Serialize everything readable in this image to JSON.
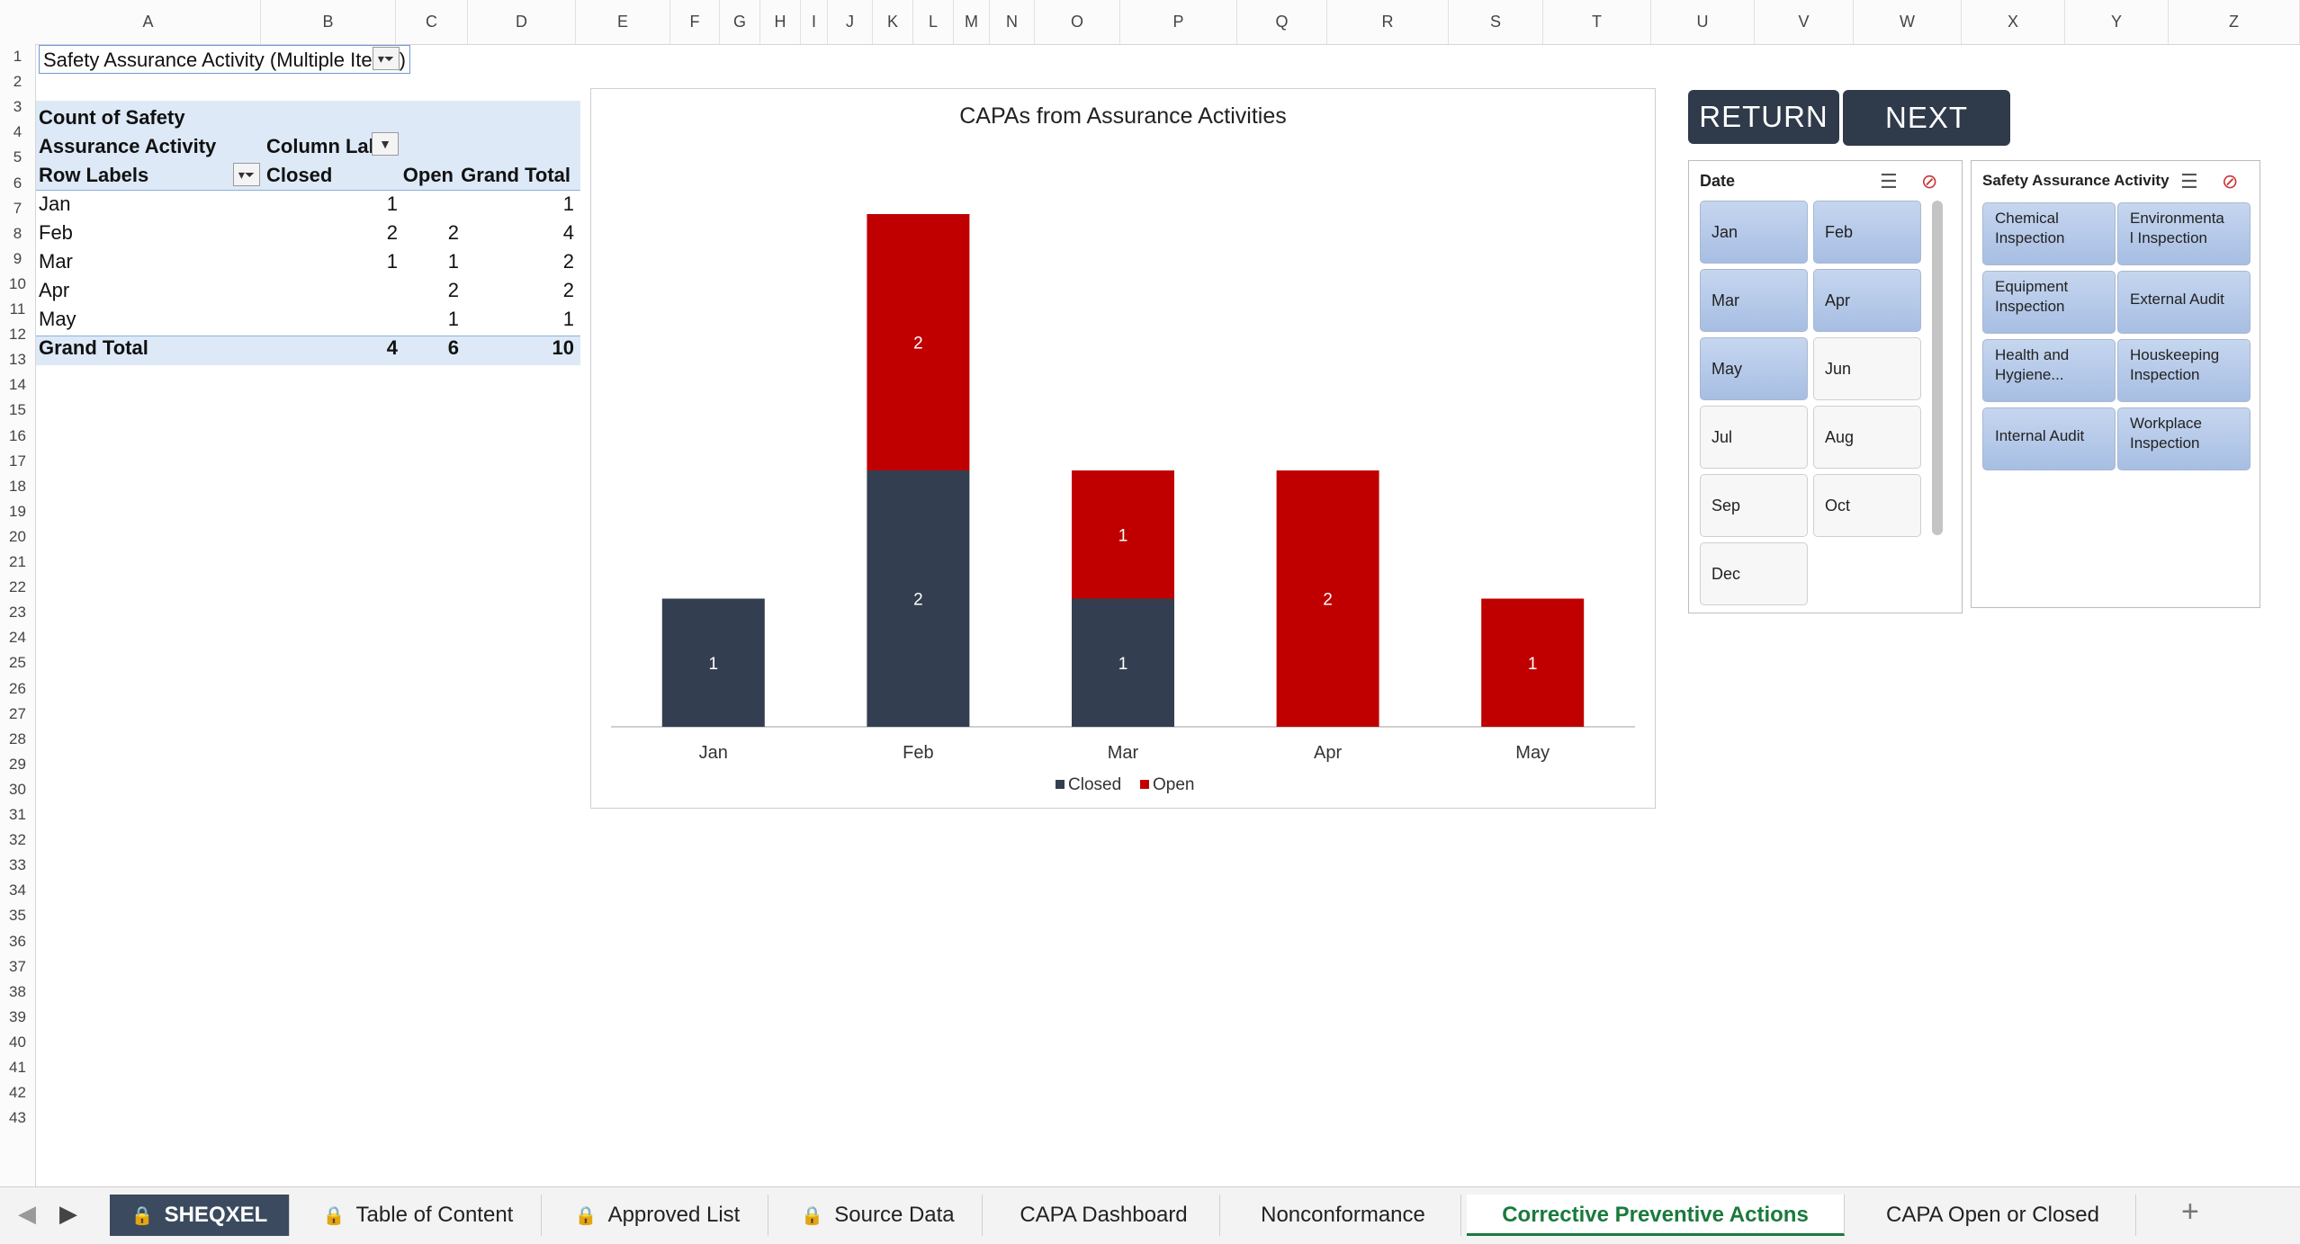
{
  "columns": [
    "A",
    "B",
    "C",
    "D",
    "E",
    "F",
    "G",
    "H",
    "I",
    "J",
    "K",
    "L",
    "M",
    "N",
    "O",
    "P",
    "Q",
    "R",
    "S",
    "T",
    "U",
    "V",
    "W",
    "X",
    "Y",
    "Z"
  ],
  "rows": [
    "1",
    "2",
    "3",
    "4",
    "5",
    "6",
    "7",
    "8",
    "9",
    "10",
    "11",
    "12",
    "13",
    "14",
    "15",
    "16",
    "17",
    "18",
    "19",
    "20",
    "21",
    "22",
    "23",
    "24",
    "25",
    "26",
    "27",
    "28",
    "29",
    "30",
    "31",
    "32",
    "33",
    "34",
    "35",
    "36",
    "37",
    "38",
    "39",
    "40",
    "41",
    "42",
    "43"
  ],
  "filter_cell": {
    "label": "Safety Assurance Activity",
    "value": "(Multiple Ite",
    "close": ")"
  },
  "pivot": {
    "header_line1": "Count of Safety",
    "header_line2": "Assurance Activity",
    "column_labels": "Column Lab",
    "row_labels": "Row Labels",
    "col_closed": "Closed",
    "col_open": "Open",
    "col_grand": "Grand Total",
    "rows": [
      {
        "label": "Jan",
        "closed": "1",
        "open": "",
        "total": "1"
      },
      {
        "label": "Feb",
        "closed": "2",
        "open": "2",
        "total": "4"
      },
      {
        "label": "Mar",
        "closed": "1",
        "open": "1",
        "total": "2"
      },
      {
        "label": "Apr",
        "closed": "",
        "open": "2",
        "total": "2"
      },
      {
        "label": "May",
        "closed": "",
        "open": "1",
        "total": "1"
      }
    ],
    "grand": {
      "label": "Grand Total",
      "closed": "4",
      "open": "6",
      "total": "10"
    }
  },
  "chart_data": {
    "type": "bar",
    "stacked": true,
    "title": "CAPAs from Assurance Activities",
    "categories": [
      "Jan",
      "Feb",
      "Mar",
      "Apr",
      "May"
    ],
    "series": [
      {
        "name": "Closed",
        "values": [
          1,
          2,
          1,
          0,
          0
        ],
        "color": "#333f50"
      },
      {
        "name": "Open",
        "values": [
          0,
          2,
          1,
          2,
          1
        ],
        "color": "#c00000"
      }
    ],
    "ylim": [
      0,
      4
    ],
    "legend": "bottom",
    "grid": false
  },
  "buttons": {
    "return": "RETURN",
    "next": "NEXT"
  },
  "date_slicer": {
    "title": "Date",
    "items": [
      {
        "label": "Jan",
        "state": "sel"
      },
      {
        "label": "Feb",
        "state": "sel"
      },
      {
        "label": "Mar",
        "state": "sel"
      },
      {
        "label": "Apr",
        "state": "sel"
      },
      {
        "label": "May",
        "state": "sel"
      },
      {
        "label": "Jun",
        "state": "nodata"
      },
      {
        "label": "Jul",
        "state": "nodata"
      },
      {
        "label": "Aug",
        "state": "nodata"
      },
      {
        "label": "Sep",
        "state": "nodata"
      },
      {
        "label": "Oct",
        "state": "nodata"
      },
      {
        "label": "Dec",
        "state": "nodata"
      }
    ]
  },
  "activity_slicer": {
    "title": "Safety Assurance Activity",
    "items": [
      {
        "line1": "Chemical",
        "line2": "Inspection"
      },
      {
        "line1": "Environmenta",
        "line2": "l Inspection"
      },
      {
        "line1": "Equipment",
        "line2": "Inspection"
      },
      {
        "line1": "External  Audit",
        "line2": ""
      },
      {
        "line1": "Health and",
        "line2": "Hygiene..."
      },
      {
        "line1": "Houskeeping",
        "line2": "Inspection"
      },
      {
        "line1": "Internal Audit",
        "line2": ""
      },
      {
        "line1": "Workplace",
        "line2": "Inspection"
      }
    ]
  },
  "tabs": [
    {
      "label": "SHEQXEL",
      "locked": true
    },
    {
      "label": "Table of Content",
      "locked": true
    },
    {
      "label": "Approved List",
      "locked": true
    },
    {
      "label": "Source Data",
      "locked": true
    },
    {
      "label": "CAPA Dashboard",
      "locked": false
    },
    {
      "label": "Nonconformance",
      "locked": false
    },
    {
      "label": "Corrective Preventive Actions",
      "locked": false
    },
    {
      "label": "CAPA Open or Closed",
      "locked": false
    }
  ],
  "tab_add": "+"
}
